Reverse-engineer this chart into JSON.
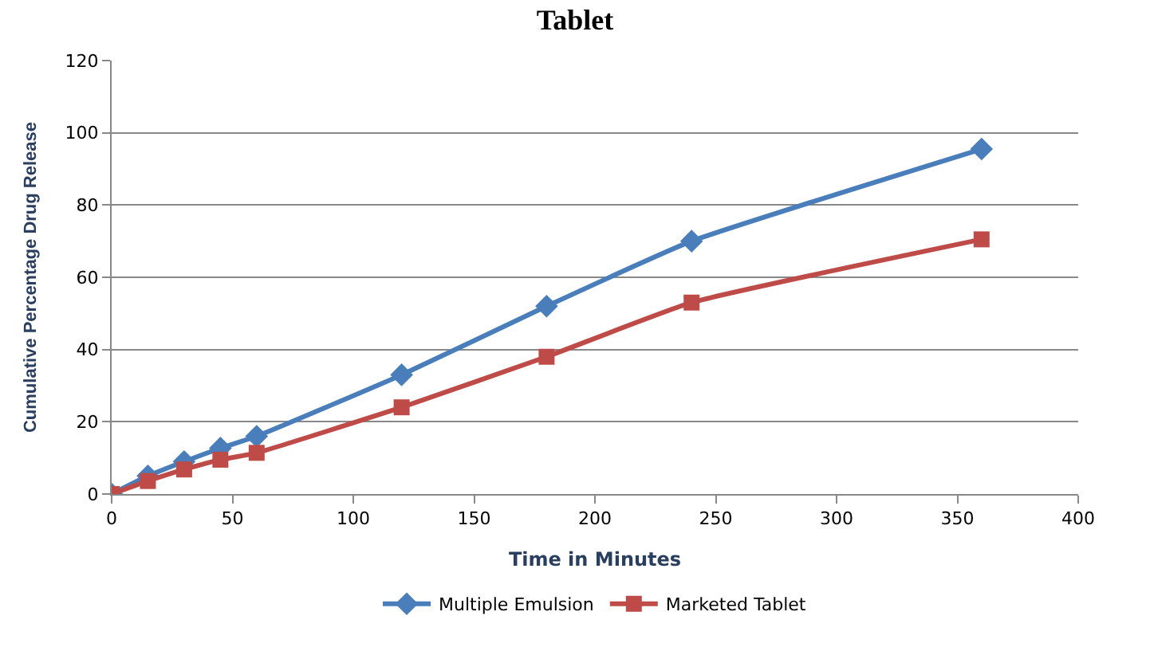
{
  "chart_data": {
    "type": "line",
    "title": "Tablet",
    "xlabel": "Time in Minutes",
    "ylabel": "Cumulative Percentage Drug Release",
    "x": [
      0,
      15,
      30,
      45,
      60,
      120,
      180,
      240,
      360
    ],
    "series": [
      {
        "name": "Multiple Emulsion",
        "color": "#4a7ebb",
        "marker": "diamond",
        "values": [
          0,
          5,
          9,
          12.7,
          16,
          33,
          52,
          70,
          95.5
        ]
      },
      {
        "name": "Marketed Tablet",
        "color": "#be4b48",
        "marker": "square",
        "values": [
          0,
          3.6,
          6.8,
          9.5,
          11.4,
          24,
          38,
          53,
          70.5
        ]
      }
    ],
    "xlim": [
      0,
      400
    ],
    "xticks": [
      0,
      50,
      100,
      150,
      200,
      250,
      300,
      350,
      400
    ],
    "ylim": [
      0,
      120
    ],
    "yticks": [
      0,
      20,
      40,
      60,
      80,
      100,
      120
    ],
    "grid": "y",
    "legend": "bottom",
    "line_style": "solid"
  }
}
